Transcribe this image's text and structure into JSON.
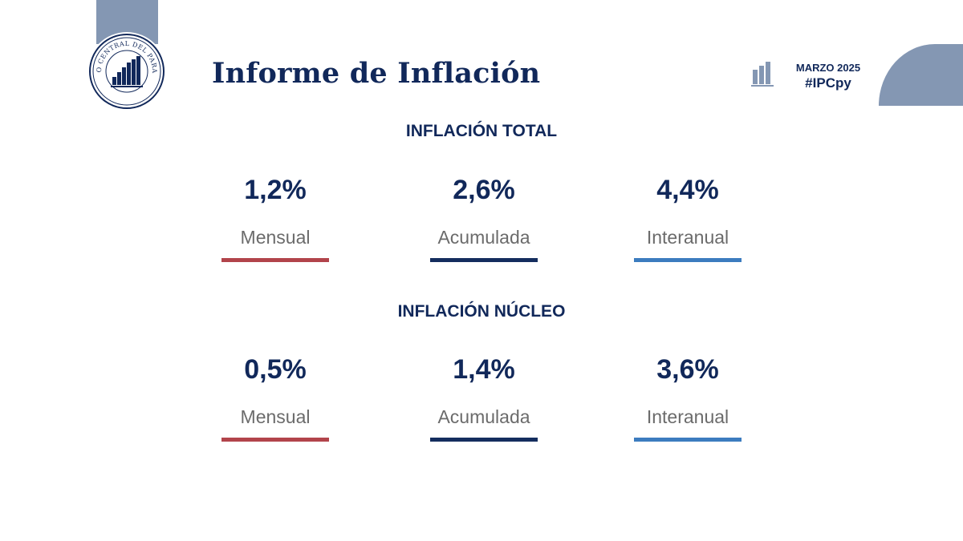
{
  "header": {
    "institution": "BANCO CENTRAL DEL PARAGUAY",
    "title": "Informe de Inflación",
    "period": "MARZO 2025",
    "hashtag": "#IPCpy",
    "icon": "bar-chart-icon"
  },
  "colors": {
    "navy": "#11285a",
    "mensual": "#b2444b",
    "acumulada": "#142d5e",
    "interanual": "#3c7cbf",
    "tab": "#8497b3"
  },
  "total": {
    "title": "INFLACIÓN TOTAL",
    "items": [
      {
        "value": "1,2%",
        "label": "Mensual"
      },
      {
        "value": "2,6%",
        "label": "Acumulada"
      },
      {
        "value": "4,4%",
        "label": "Interanual"
      }
    ]
  },
  "core": {
    "title": "INFLACIÓN NÚCLEO",
    "items": [
      {
        "value": "0,5%",
        "label": "Mensual"
      },
      {
        "value": "1,4%",
        "label": "Acumulada"
      },
      {
        "value": "3,6%",
        "label": "Interanual"
      }
    ]
  }
}
